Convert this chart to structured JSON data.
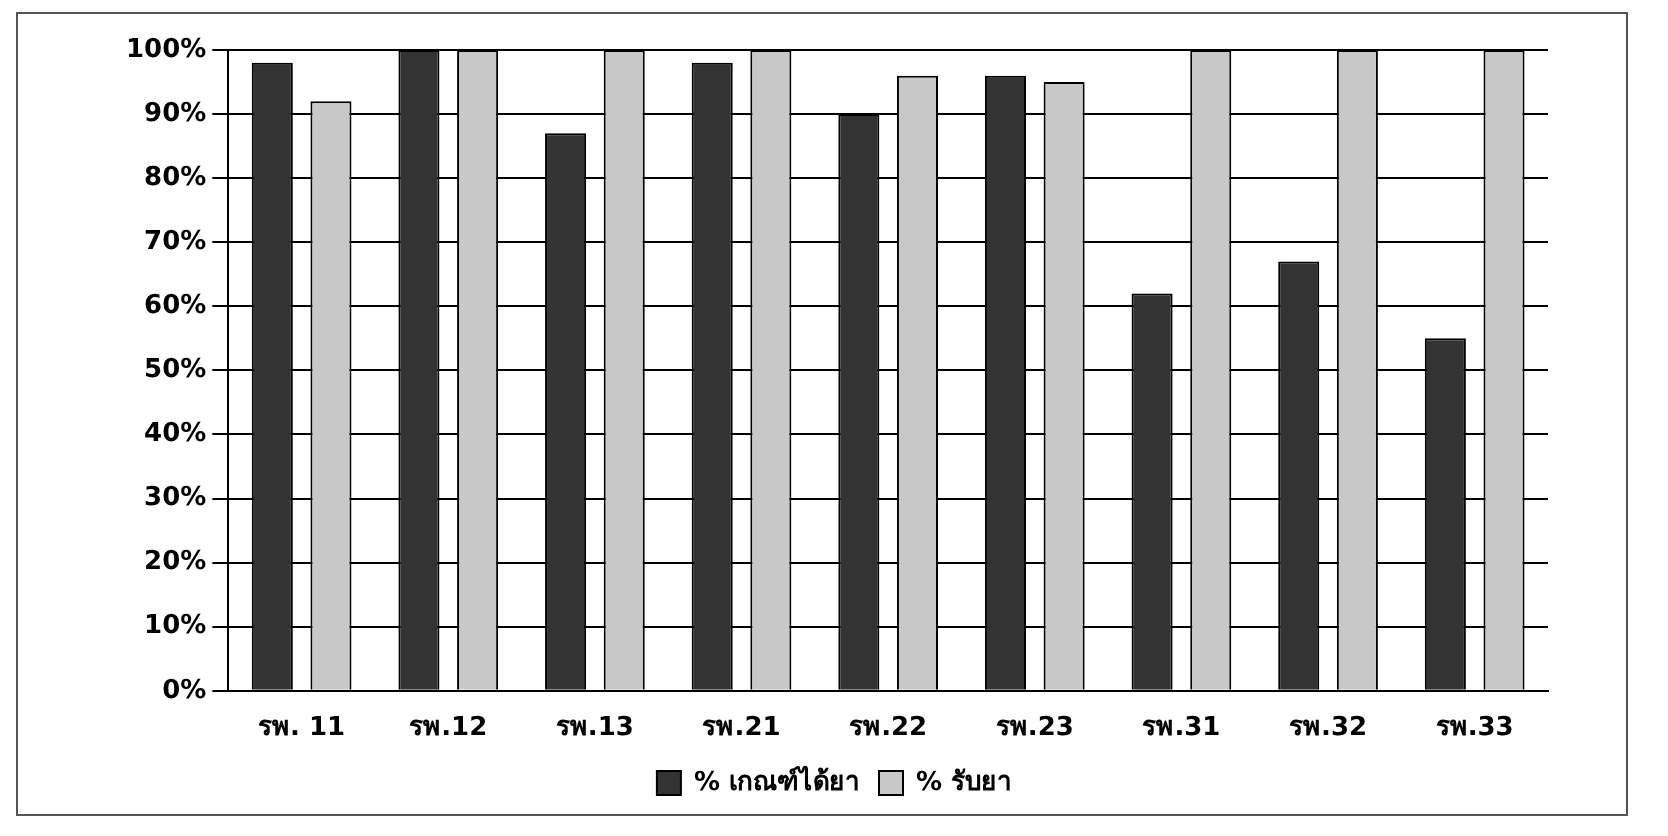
{
  "chart_data": {
    "type": "bar",
    "categories": [
      "รพ. 11",
      "รพ.12",
      "รพ.13",
      "รพ.21",
      "รพ.22",
      "รพ.23",
      "รพ.31",
      "รพ.32",
      "รพ.33"
    ],
    "series": [
      {
        "name": "% เกณฑ์ได้ยา",
        "color": "#333333",
        "values": [
          98,
          100,
          87,
          98,
          90,
          96,
          62,
          67,
          55
        ]
      },
      {
        "name": "% รับยา",
        "color": "#c8c8c8",
        "values": [
          92,
          100,
          100,
          100,
          96,
          95,
          100,
          100,
          100
        ]
      }
    ],
    "ylim": [
      0,
      100
    ],
    "yticks": [
      {
        "value": 0,
        "label": "0%"
      },
      {
        "value": 10,
        "label": "10%"
      },
      {
        "value": 20,
        "label": "20%"
      },
      {
        "value": 30,
        "label": "30%"
      },
      {
        "value": 40,
        "label": "40%"
      },
      {
        "value": 50,
        "label": "50%"
      },
      {
        "value": 60,
        "label": "60%"
      },
      {
        "value": 70,
        "label": "70%"
      },
      {
        "value": 80,
        "label": "80%"
      },
      {
        "value": 90,
        "label": "90%"
      },
      {
        "value": 100,
        "label": "100%"
      }
    ],
    "grid": "y",
    "legend": "bottom"
  }
}
